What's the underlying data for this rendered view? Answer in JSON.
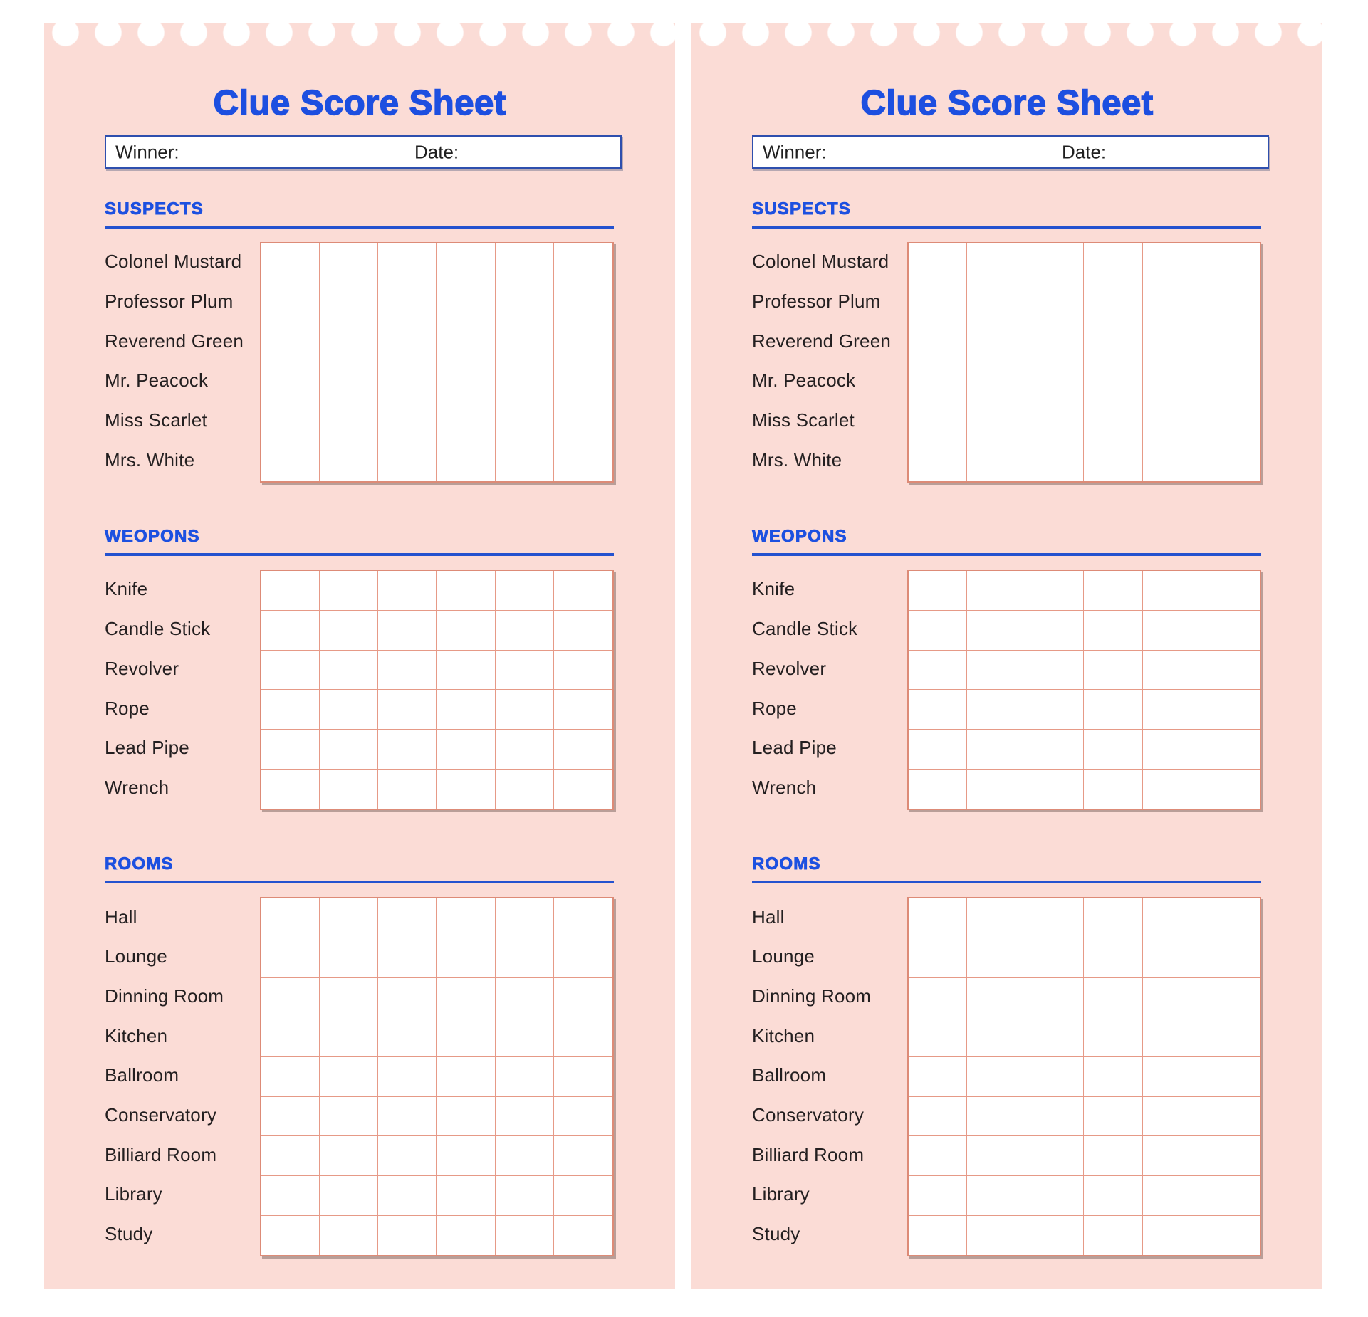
{
  "sheet": {
    "title": "Clue Score Sheet",
    "winner_label": "Winner:",
    "date_label": "Date:",
    "winner_value": "",
    "date_value": "",
    "grid_columns": 6,
    "sections": [
      {
        "id": "suspects",
        "heading": "SUSPECTS",
        "items": [
          "Colonel Mustard",
          "Professor Plum",
          "Reverend Green",
          "Mr. Peacock",
          "Miss Scarlet",
          "Mrs. White"
        ]
      },
      {
        "id": "weapons",
        "heading": "WEOPONS",
        "items": [
          "Knife",
          "Candle Stick",
          "Revolver",
          "Rope",
          "Lead Pipe",
          "Wrench"
        ]
      },
      {
        "id": "rooms",
        "heading": "ROOMS",
        "items": [
          "Hall",
          "Lounge",
          "Dinning Room",
          "Kitchen",
          "Ballroom",
          "Conservatory",
          "Billiard Room",
          "Library",
          "Study"
        ]
      }
    ]
  },
  "panel_count": 2,
  "colors": {
    "panel_pink": "#fbdcd6",
    "title_blue": "#1d4fe0",
    "heading_blue": "#1d50e0",
    "rule_blue": "#2452cf",
    "box_border_blue": "#2e4fae",
    "grid_outer_border": "#dd8b77",
    "grid_inner_border": "#e69a87",
    "label_text": "#231f20",
    "page_background": "#ffffff"
  }
}
